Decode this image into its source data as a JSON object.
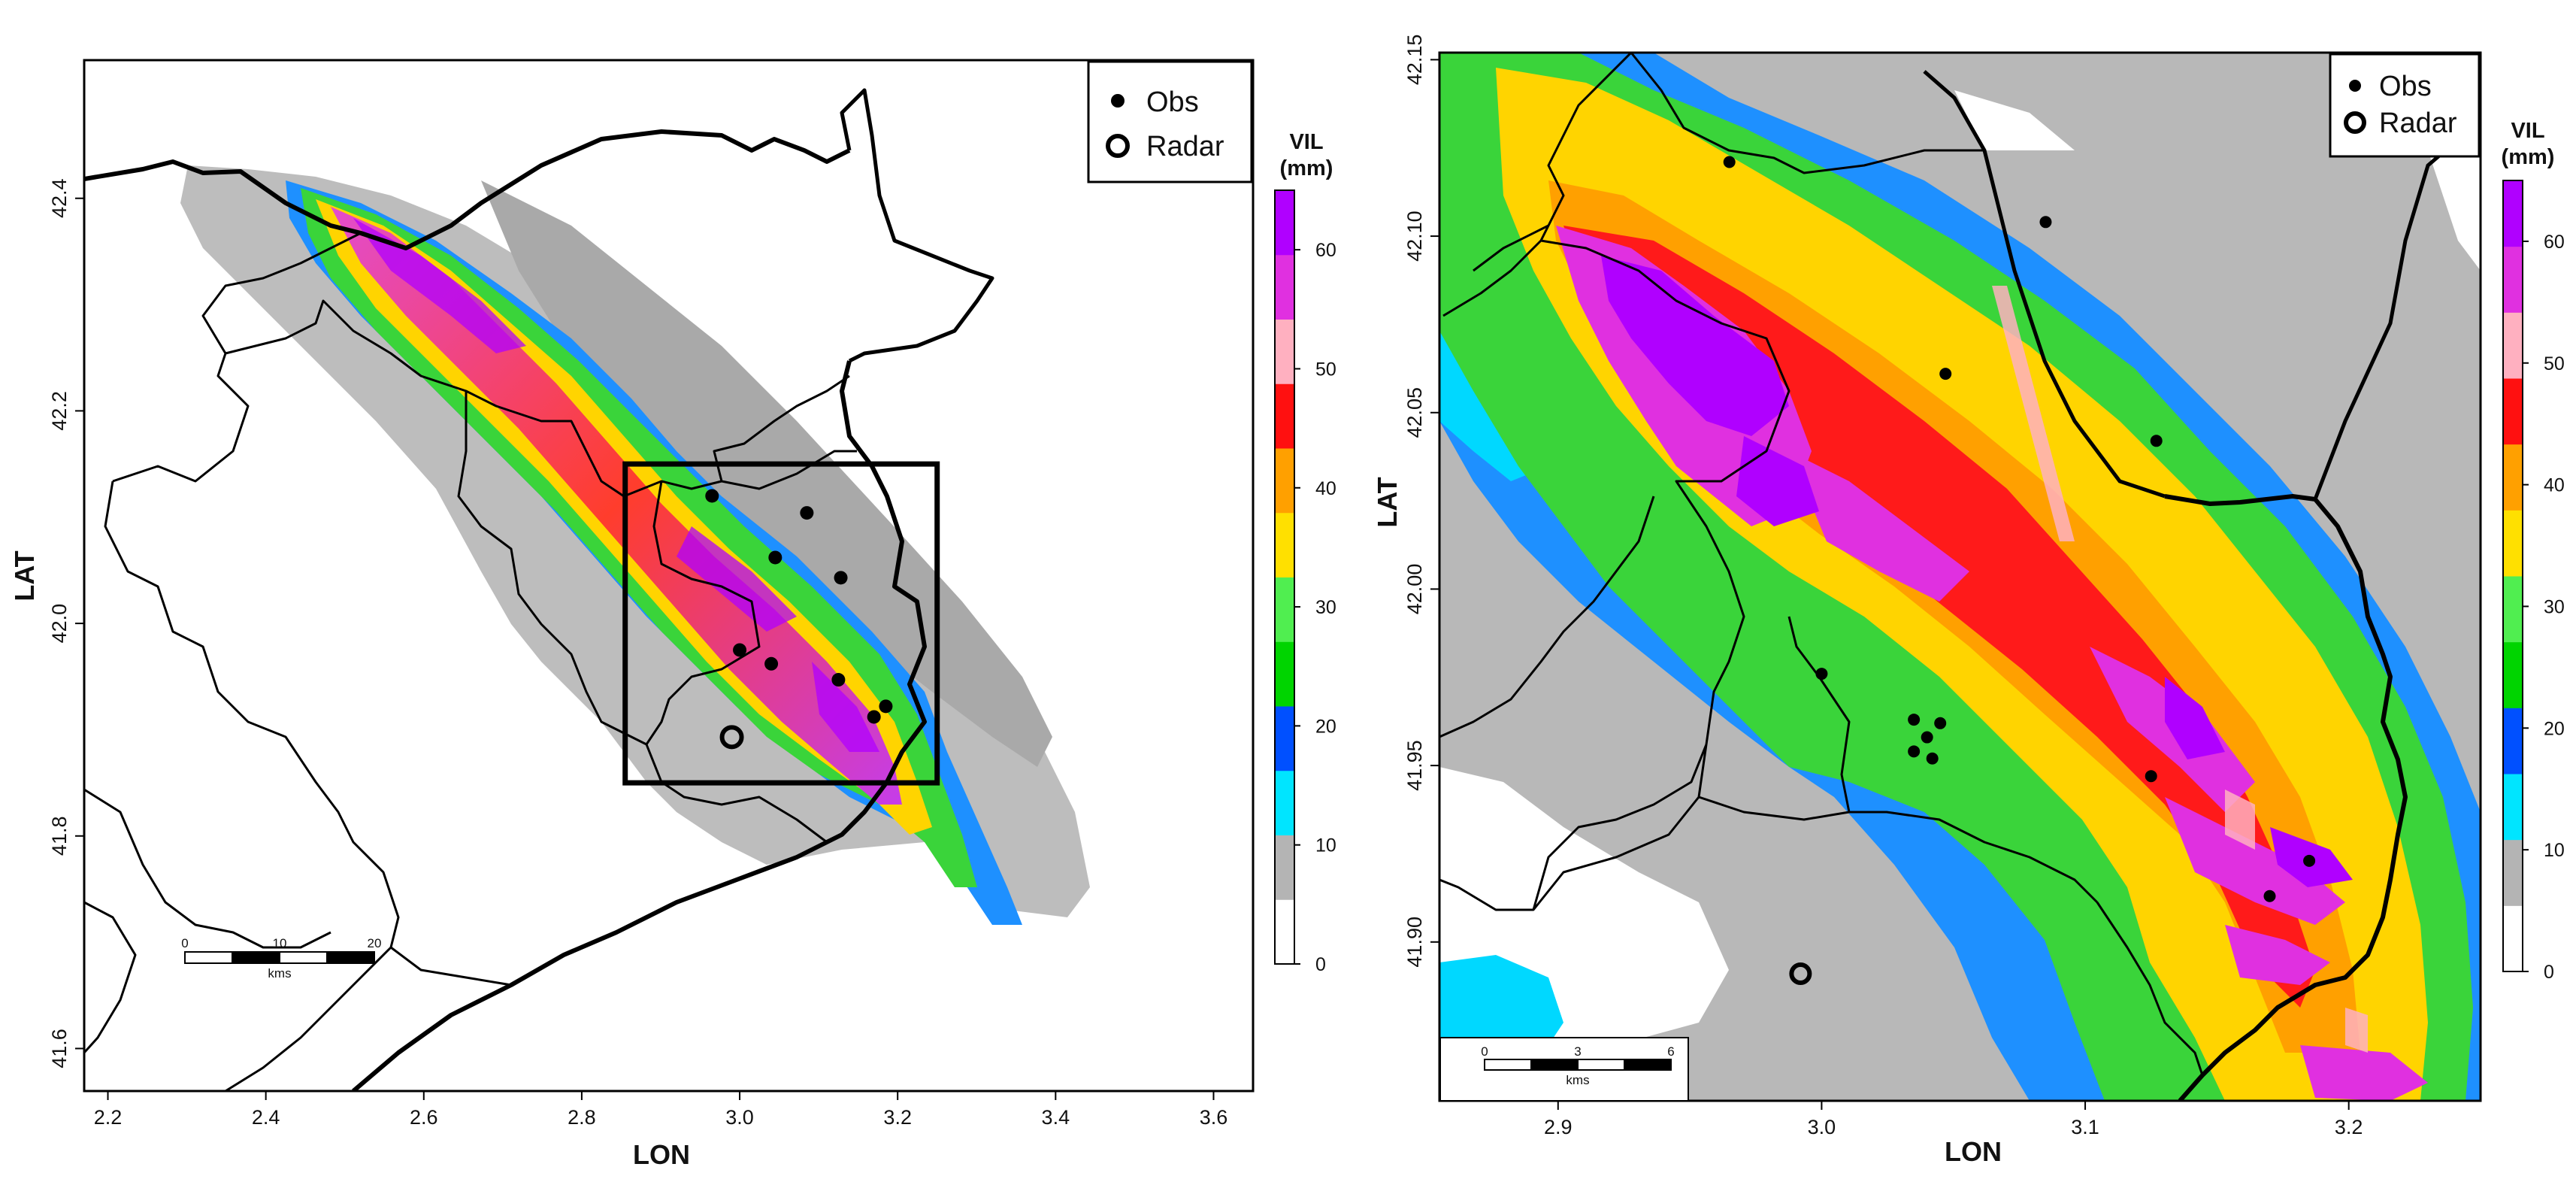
{
  "left_map": {
    "x_axis_title": "LON",
    "y_axis_title": "LAT",
    "x_ticks": [
      "2.2",
      "2.4",
      "2.6",
      "2.8",
      "3.0",
      "3.2",
      "3.4",
      "3.6"
    ],
    "y_ticks": [
      "41.6",
      "41.8",
      "42.0",
      "42.2",
      "42.4"
    ],
    "xlim": [
      2.17,
      3.65
    ],
    "ylim": [
      41.56,
      42.53
    ],
    "legend": {
      "obs": "Obs",
      "radar": "Radar"
    },
    "colorbar": {
      "title_line1": "VIL",
      "title_line2": "(mm)",
      "ticks": [
        "0",
        "10",
        "20",
        "30",
        "40",
        "50",
        "60"
      ],
      "max": 65
    },
    "scalebar": {
      "labels": [
        "0",
        "10",
        "20"
      ],
      "unit": "kms"
    },
    "zoom_box": {
      "lon": [
        2.855,
        3.25
      ],
      "lat": [
        41.85,
        42.15
      ]
    },
    "radar": {
      "lon": 2.99,
      "lat": 41.893
    },
    "obs": [
      {
        "lon": 2.965,
        "lat": 42.12
      },
      {
        "lon": 3.085,
        "lat": 42.104
      },
      {
        "lon": 3.045,
        "lat": 42.062
      },
      {
        "lon": 3.128,
        "lat": 42.043
      },
      {
        "lon": 3.0,
        "lat": 41.975
      },
      {
        "lon": 3.04,
        "lat": 41.962
      },
      {
        "lon": 3.125,
        "lat": 41.947
      },
      {
        "lon": 3.185,
        "lat": 41.922
      },
      {
        "lon": 3.17,
        "lat": 41.912
      }
    ]
  },
  "right_map": {
    "x_axis_title": "LON",
    "y_axis_title": "LAT",
    "x_ticks": [
      "2.9",
      "3.0",
      "3.1",
      "3.2"
    ],
    "y_ticks": [
      "41.90",
      "41.95",
      "42.00",
      "42.05",
      "42.10",
      "42.15"
    ],
    "xlim": [
      2.855,
      3.25
    ],
    "ylim": [
      41.855,
      42.152
    ],
    "legend": {
      "obs": "Obs",
      "radar": "Radar"
    },
    "colorbar": {
      "title_line1": "VIL",
      "title_line2": "(mm)",
      "ticks": [
        "0",
        "10",
        "20",
        "30",
        "40",
        "50",
        "60"
      ],
      "max": 65
    },
    "scalebar": {
      "labels": [
        "0",
        "3",
        "6"
      ],
      "unit": "kms"
    },
    "radar": {
      "lon": 2.992,
      "lat": 41.891
    },
    "obs": [
      {
        "lon": 2.965,
        "lat": 42.121
      },
      {
        "lon": 3.085,
        "lat": 42.104
      },
      {
        "lon": 3.047,
        "lat": 42.061
      },
      {
        "lon": 3.127,
        "lat": 42.042
      },
      {
        "lon": 3.0,
        "lat": 41.976
      },
      {
        "lon": 3.035,
        "lat": 41.963
      },
      {
        "lon": 3.04,
        "lat": 41.958
      },
      {
        "lon": 3.045,
        "lat": 41.962
      },
      {
        "lon": 3.035,
        "lat": 41.954
      },
      {
        "lon": 3.042,
        "lat": 41.952
      },
      {
        "lon": 3.125,
        "lat": 41.947
      },
      {
        "lon": 3.185,
        "lat": 41.923
      },
      {
        "lon": 3.17,
        "lat": 41.913
      }
    ]
  },
  "colors": {
    "vil_scale": [
      "#ffffff",
      "#b4b4b4",
      "#00e5ff",
      "#0050ff",
      "#00d400",
      "#50ee50",
      "#ffe000",
      "#ffa000",
      "#ff1010",
      "#ffb0c0",
      "#e030e0",
      "#b000ff"
    ],
    "frame": "#000000"
  }
}
